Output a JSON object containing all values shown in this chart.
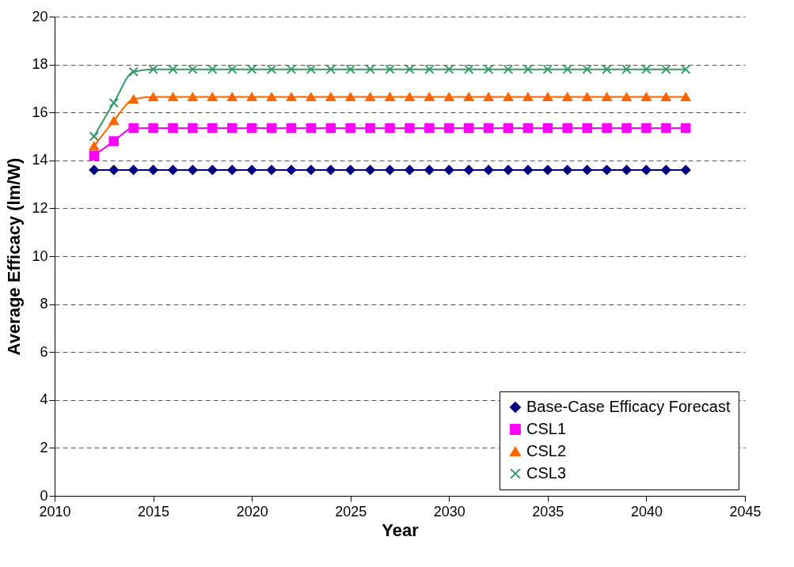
{
  "chart_data": {
    "type": "line",
    "xlabel": "Year",
    "ylabel": "Average Efficacy (lm/W)",
    "x": [
      2012,
      2013,
      2014,
      2015,
      2016,
      2017,
      2018,
      2019,
      2020,
      2021,
      2022,
      2023,
      2024,
      2025,
      2026,
      2027,
      2028,
      2029,
      2030,
      2031,
      2032,
      2033,
      2034,
      2035,
      2036,
      2037,
      2038,
      2039,
      2040,
      2041,
      2042
    ],
    "series": [
      {
        "name": "Base-Case Efficacy Forecast",
        "color": "#000080",
        "marker": "diamond",
        "values": [
          13.6,
          13.6,
          13.6,
          13.6,
          13.6,
          13.6,
          13.6,
          13.6,
          13.6,
          13.6,
          13.6,
          13.6,
          13.6,
          13.6,
          13.6,
          13.6,
          13.6,
          13.6,
          13.6,
          13.6,
          13.6,
          13.6,
          13.6,
          13.6,
          13.6,
          13.6,
          13.6,
          13.6,
          13.6,
          13.6,
          13.6
        ]
      },
      {
        "name": "CSL1",
        "color": "#ff00ff",
        "marker": "square",
        "values": [
          14.2,
          14.8,
          15.35,
          15.35,
          15.35,
          15.35,
          15.35,
          15.35,
          15.35,
          15.35,
          15.35,
          15.35,
          15.35,
          15.35,
          15.35,
          15.35,
          15.35,
          15.35,
          15.35,
          15.35,
          15.35,
          15.35,
          15.35,
          15.35,
          15.35,
          15.35,
          15.35,
          15.35,
          15.35,
          15.35,
          15.35
        ]
      },
      {
        "name": "CSL2",
        "color": "#ff6600",
        "marker": "triangle",
        "values": [
          14.6,
          15.65,
          16.55,
          16.65,
          16.65,
          16.65,
          16.65,
          16.65,
          16.65,
          16.65,
          16.65,
          16.65,
          16.65,
          16.65,
          16.65,
          16.65,
          16.65,
          16.65,
          16.65,
          16.65,
          16.65,
          16.65,
          16.65,
          16.65,
          16.65,
          16.65,
          16.65,
          16.65,
          16.65,
          16.65,
          16.65
        ]
      },
      {
        "name": "CSL3",
        "color": "#339966",
        "marker": "cross",
        "values": [
          15.0,
          16.4,
          17.7,
          17.8,
          17.8,
          17.8,
          17.8,
          17.8,
          17.8,
          17.8,
          17.8,
          17.8,
          17.8,
          17.8,
          17.8,
          17.8,
          17.8,
          17.8,
          17.8,
          17.8,
          17.8,
          17.8,
          17.8,
          17.8,
          17.8,
          17.8,
          17.8,
          17.8,
          17.8,
          17.8,
          17.8
        ]
      }
    ],
    "xlim": [
      2010,
      2045
    ],
    "xticks": [
      2010,
      2015,
      2020,
      2025,
      2030,
      2035,
      2040,
      2045
    ],
    "ylim": [
      0,
      20
    ],
    "yticks": [
      0,
      2,
      4,
      6,
      8,
      10,
      12,
      14,
      16,
      18,
      20
    ],
    "grid": "y",
    "legend": "bottom right",
    "line_style": "solid"
  }
}
